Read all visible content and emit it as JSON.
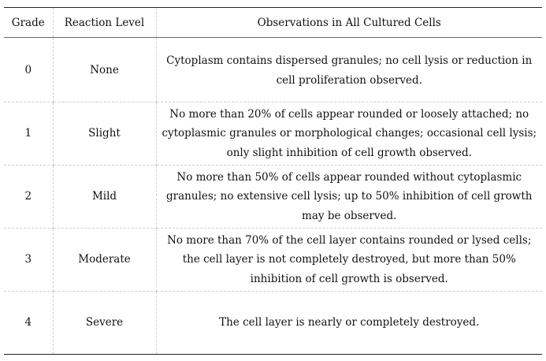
{
  "table": {
    "headers": {
      "grade": "Grade",
      "reaction_level": "Reaction Level",
      "observations": "Observations in All Cultured Cells"
    },
    "rows": [
      {
        "grade": "0",
        "reaction_level": "None",
        "observations": "Cytoplasm contains dispersed granules; no cell lysis or reduction in cell proliferation observed."
      },
      {
        "grade": "1",
        "reaction_level": "Slight",
        "observations": "No more than 20% of cells appear rounded or loosely attached; no cytoplasmic granules or morphological changes; occasional cell lysis; only slight inhibition of cell growth observed."
      },
      {
        "grade": "2",
        "reaction_level": "Mild",
        "observations": "No more than 50% of cells appear rounded without cytoplasmic granules; no extensive cell lysis; up to 50% inhibition of cell growth may be observed."
      },
      {
        "grade": "3",
        "reaction_level": "Moderate",
        "observations": "No more than 70% of the cell layer contains rounded or lysed cells; the cell layer is not completely destroyed, but more than 50% inhibition of cell growth is observed."
      },
      {
        "grade": "4",
        "reaction_level": "Severe",
        "observations": "The cell layer is nearly or completely destroyed."
      }
    ]
  }
}
